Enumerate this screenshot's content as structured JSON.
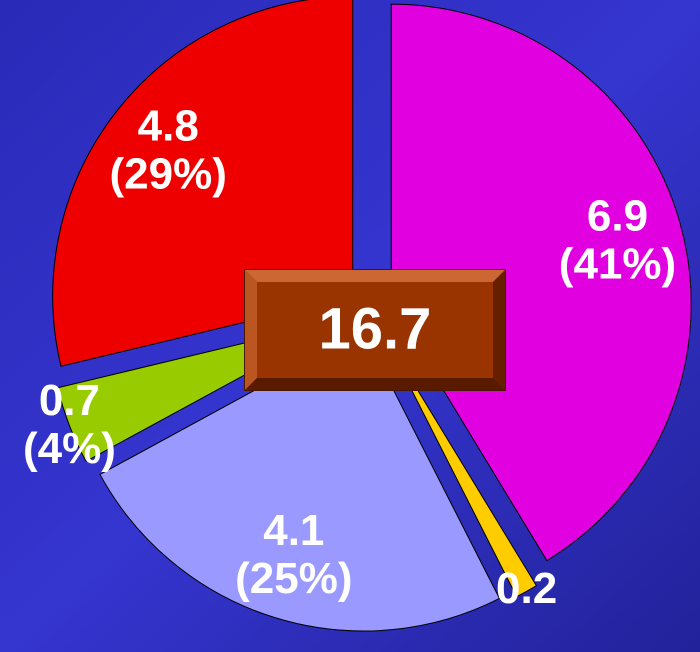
{
  "chart_data": {
    "type": "pie",
    "values": [
      6.9,
      0.2,
      4.1,
      0.7,
      4.8
    ],
    "percent_labels": [
      "(41%)",
      null,
      "(25%)",
      "(4%)",
      "(29%)"
    ],
    "colors": [
      "#e000e0",
      "#ffcc00",
      "#9999ff",
      "#99cc00",
      "#ee0000"
    ],
    "total": 16.7
  }
}
